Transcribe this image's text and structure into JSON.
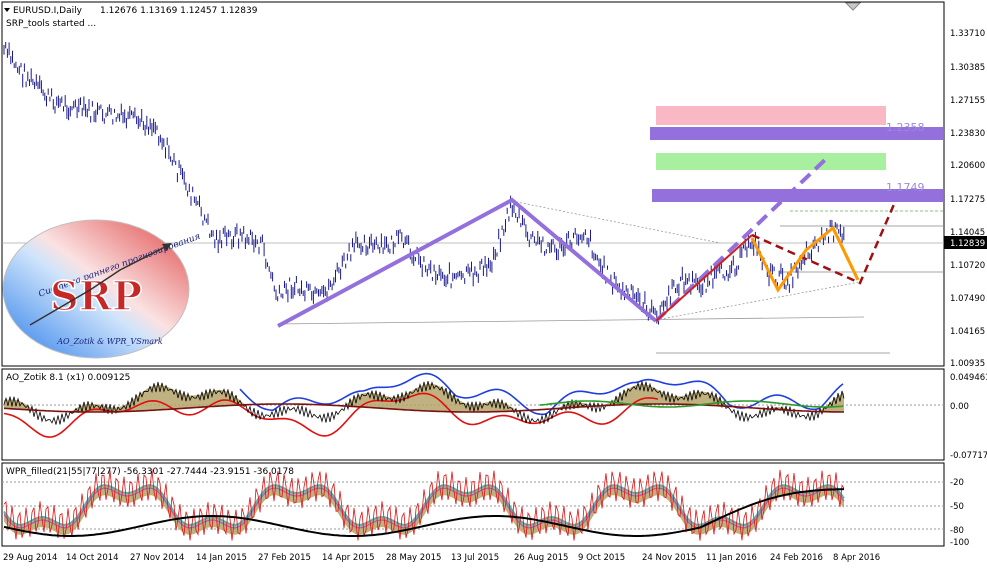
{
  "main": {
    "title": "EURUSD.I,Daily",
    "ohlc": "1.12676 1.13169 1.12457 1.12839",
    "status": "SRP_tools started ...",
    "current_price": "1.12839",
    "price_axis": [
      "1.33710",
      "1.30385",
      "1.27155",
      "1.23830",
      "1.20600",
      "1.17275",
      "1.14045",
      "1.10720",
      "1.07490",
      "1.04165",
      "1.00935"
    ],
    "levels": {
      "upper": "1.2358",
      "lower": "1.1749"
    },
    "colors": {
      "pink_zone": "#f9b8c4",
      "green_zone": "#a8f0a0",
      "purple_band": "#9370db",
      "orange": "#ff9900",
      "darkred": "#a01010",
      "price": "#1a1a8c"
    }
  },
  "logo": {
    "top_text": "Система раннего прогнозирования",
    "big_text": "SRP",
    "bottom_text": "AO_Zotik & WPR_VSmark"
  },
  "ao_pane": {
    "title": "AO_Zotik 8.1 (x1) 0.009125",
    "axis": [
      "0.049461",
      "0.00",
      "-0.077171"
    ]
  },
  "wpr_pane": {
    "title": "WPR_filled(21|55|77|277)  -56.3301 -27.7444 -23.9151 -36.0178",
    "axis": [
      "-20",
      "-50",
      "-80",
      "-100"
    ]
  },
  "time_axis": [
    "29 Aug 2014",
    "14 Oct 2014",
    "27 Nov 2014",
    "14 Jan 2015",
    "27 Feb 2015",
    "14 Apr 2015",
    "28 May 2015",
    "13 Jul 2015",
    "26 Aug 2015",
    "9 Oct 2015",
    "24 Nov 2015",
    "11 Jan 2016",
    "24 Feb 2016",
    "8 Apr 2016"
  ]
}
